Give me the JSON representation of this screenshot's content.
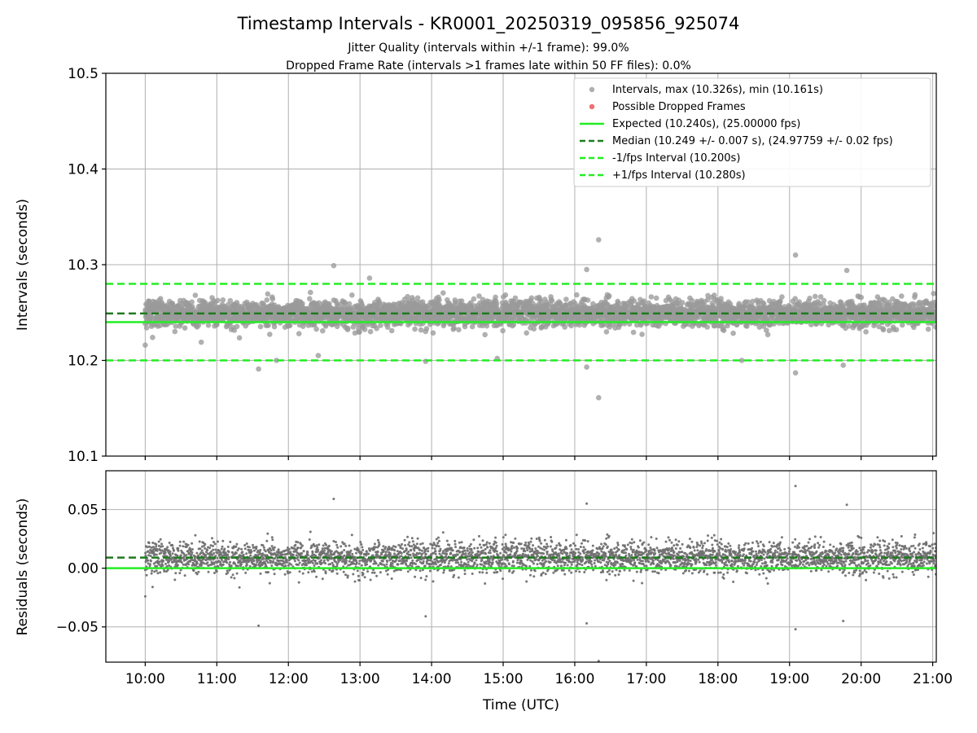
{
  "title": "Timestamp Intervals - KR0001_20250319_095856_925074",
  "subtitle_1": "Jitter Quality (intervals within +/-1 frame): 99.0%",
  "subtitle_2": "Dropped Frame Rate (intervals >1 frames late within 50 FF files): 0.0%",
  "colors": {
    "points": "#9a9a9a",
    "residual_points": "#707070",
    "dropped": "#f07070",
    "expected": "#22ee22",
    "median": "#1e7a1e",
    "limits": "#22ee22",
    "grid": "#b0b0b0"
  },
  "chart_data": [
    {
      "type": "scatter",
      "panel": "intervals",
      "xlabel": "",
      "ylabel": "Intervals (seconds)",
      "ylim": [
        10.1,
        10.5
      ],
      "yticks": [
        "10.1",
        "10.2",
        "10.3",
        "10.4",
        "10.5"
      ],
      "xlim": [
        "09:27",
        "21:03"
      ],
      "grid": true,
      "legend_position": "top-right",
      "legend": [
        "Intervals, max (10.326s), min (10.161s)",
        "Possible Dropped Frames",
        "Expected (10.240s), (25.00000 fps)",
        "Median (10.249 +/- 0.007 s), (24.97759 +/- 0.02 fps)",
        "-1/fps Interval (10.200s)",
        "+1/fps Interval (10.280s)"
      ],
      "reference_lines": [
        {
          "name": "Expected",
          "y": 10.24,
          "style": "solid"
        },
        {
          "name": "Median",
          "y": 10.249,
          "style": "dashed"
        },
        {
          "name": "-1/fps Interval",
          "y": 10.2,
          "style": "dashed"
        },
        {
          "name": "+1/fps Interval",
          "y": 10.28,
          "style": "dashed"
        }
      ],
      "series": [
        {
          "name": "Intervals",
          "count": 3870,
          "x_range": [
            "10:00",
            "21:03"
          ],
          "center": 10.249,
          "spread": 0.007
        },
        {
          "name": "Possible Dropped Frames",
          "count": 0
        }
      ],
      "outliers": [
        {
          "x": "10:00",
          "y": 10.216
        },
        {
          "x": "10:47",
          "y": 10.219
        },
        {
          "x": "11:35",
          "y": 10.191
        },
        {
          "x": "11:50",
          "y": 10.2
        },
        {
          "x": "12:25",
          "y": 10.205
        },
        {
          "x": "12:38",
          "y": 10.299
        },
        {
          "x": "13:08",
          "y": 10.286
        },
        {
          "x": "13:55",
          "y": 10.199
        },
        {
          "x": "14:55",
          "y": 10.202
        },
        {
          "x": "16:10",
          "y": 10.295
        },
        {
          "x": "16:10",
          "y": 10.193
        },
        {
          "x": "16:20",
          "y": 10.326
        },
        {
          "x": "16:20",
          "y": 10.161
        },
        {
          "x": "18:20",
          "y": 10.2
        },
        {
          "x": "19:05",
          "y": 10.31
        },
        {
          "x": "19:05",
          "y": 10.187
        },
        {
          "x": "19:45",
          "y": 10.195
        },
        {
          "x": "19:48",
          "y": 10.294
        }
      ],
      "xticks": [
        "10:00",
        "11:00",
        "12:00",
        "13:00",
        "14:00",
        "15:00",
        "16:00",
        "17:00",
        "18:00",
        "19:00",
        "20:00",
        "21:00"
      ]
    },
    {
      "type": "scatter",
      "panel": "residuals",
      "xlabel": "Time (UTC)",
      "ylabel": "Residuals (seconds)",
      "ylim": [
        -0.08,
        0.083
      ],
      "yticks": [
        "−0.05",
        "0.00",
        "0.05"
      ],
      "ytick_values": [
        -0.05,
        0.0,
        0.05
      ],
      "xlim": [
        "09:27",
        "21:03"
      ],
      "grid": true,
      "reference_lines": [
        {
          "name": "Expected",
          "y": 0.0,
          "style": "solid"
        },
        {
          "name": "Median",
          "y": 0.009,
          "style": "dashed"
        }
      ],
      "series": [
        {
          "name": "Residuals",
          "count": 3870,
          "x_range": [
            "10:00",
            "21:03"
          ],
          "center": 0.009,
          "spread": 0.007
        }
      ],
      "outliers": [
        {
          "x": "10:00",
          "y": -0.024
        },
        {
          "x": "11:35",
          "y": -0.049
        },
        {
          "x": "12:38",
          "y": 0.059
        },
        {
          "x": "13:55",
          "y": -0.041
        },
        {
          "x": "16:10",
          "y": 0.055
        },
        {
          "x": "16:10",
          "y": -0.047
        },
        {
          "x": "16:20",
          "y": -0.079
        },
        {
          "x": "19:05",
          "y": 0.07
        },
        {
          "x": "19:05",
          "y": -0.052
        },
        {
          "x": "19:45",
          "y": -0.045
        },
        {
          "x": "19:48",
          "y": 0.054
        }
      ],
      "xticks": [
        "10:00",
        "11:00",
        "12:00",
        "13:00",
        "14:00",
        "15:00",
        "16:00",
        "17:00",
        "18:00",
        "19:00",
        "20:00",
        "21:00"
      ]
    }
  ]
}
